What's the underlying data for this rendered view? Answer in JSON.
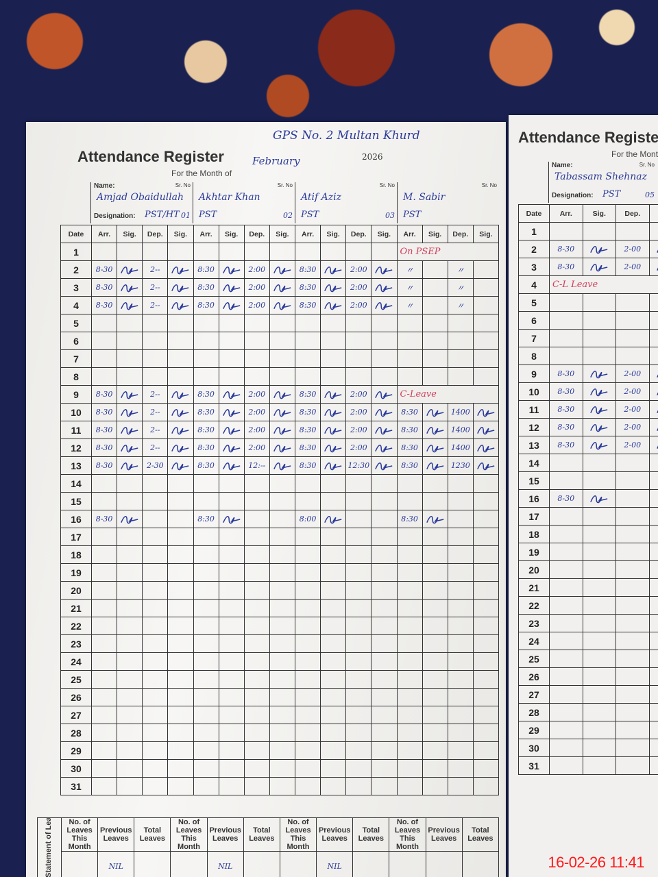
{
  "register": {
    "title": "Attendance Register",
    "month_label": "For the Month of",
    "school": "GPS No. 2 Multan Khurd",
    "month": "February",
    "year": "2026"
  },
  "labels": {
    "name": "Name:",
    "designation": "Designation:",
    "sr_no": "Sr. No",
    "date": "Date",
    "arr": "Arr.",
    "sig": "Sig.",
    "dep": "Dep.",
    "statement": "Statement of Leave Taken",
    "leaves_this_month": "No. of Leaves This Month",
    "previous_leaves": "Previous Leaves",
    "total_leaves": "Total Leaves"
  },
  "ink_colors": {
    "blue": "#2a3a9a",
    "red": "#d0405a"
  },
  "left_page": {
    "employees": [
      {
        "name": "Amjad Obaidullah",
        "designation": "PST/HT",
        "sr_no": "01",
        "previous_leaves": "NIL",
        "records": [
          {
            "date": 2,
            "arr": "8-30",
            "dep": "2--",
            "signed": true
          },
          {
            "date": 3,
            "arr": "8-30",
            "dep": "2--",
            "signed": true
          },
          {
            "date": 4,
            "arr": "8-30",
            "dep": "2--",
            "signed": true
          },
          {
            "date": 9,
            "arr": "8-30",
            "dep": "2--",
            "signed": true
          },
          {
            "date": 10,
            "arr": "8-30",
            "dep": "2--",
            "signed": true
          },
          {
            "date": 11,
            "arr": "8-30",
            "dep": "2--",
            "signed": true
          },
          {
            "date": 12,
            "arr": "8-30",
            "dep": "2--",
            "signed": true
          },
          {
            "date": 13,
            "arr": "8-30",
            "dep": "2-30",
            "signed": true
          },
          {
            "date": 16,
            "arr": "8-30",
            "dep": "",
            "signed": true
          }
        ],
        "notes": []
      },
      {
        "name": "Akhtar Khan",
        "designation": "PST",
        "sr_no": "02",
        "previous_leaves": "NIL",
        "records": [
          {
            "date": 2,
            "arr": "8:30",
            "dep": "2:00",
            "signed": true
          },
          {
            "date": 3,
            "arr": "8:30",
            "dep": "2:00",
            "signed": true
          },
          {
            "date": 4,
            "arr": "8:30",
            "dep": "2:00",
            "signed": true
          },
          {
            "date": 9,
            "arr": "8:30",
            "dep": "2:00",
            "signed": true
          },
          {
            "date": 10,
            "arr": "8:30",
            "dep": "2:00",
            "signed": true
          },
          {
            "date": 11,
            "arr": "8:30",
            "dep": "2:00",
            "signed": true
          },
          {
            "date": 12,
            "arr": "8:30",
            "dep": "2:00",
            "signed": true
          },
          {
            "date": 13,
            "arr": "8:30",
            "dep": "12:--",
            "signed": true
          },
          {
            "date": 16,
            "arr": "8:30",
            "dep": "",
            "signed": true
          }
        ],
        "notes": []
      },
      {
        "name": "Atif Aziz",
        "designation": "PST",
        "sr_no": "03",
        "previous_leaves": "NIL",
        "records": [
          {
            "date": 2,
            "arr": "8:30",
            "dep": "2:00",
            "signed": true
          },
          {
            "date": 3,
            "arr": "8:30",
            "dep": "2:00",
            "signed": true
          },
          {
            "date": 4,
            "arr": "8:30",
            "dep": "2:00",
            "signed": true
          },
          {
            "date": 9,
            "arr": "8:30",
            "dep": "2:00",
            "signed": true
          },
          {
            "date": 10,
            "arr": "8:30",
            "dep": "2:00",
            "signed": true
          },
          {
            "date": 11,
            "arr": "8:30",
            "dep": "2:00",
            "signed": true
          },
          {
            "date": 12,
            "arr": "8:30",
            "dep": "2:00",
            "signed": true
          },
          {
            "date": 13,
            "arr": "8:30",
            "dep": "12:30",
            "signed": true
          },
          {
            "date": 16,
            "arr": "8:00",
            "dep": "",
            "signed": true
          }
        ],
        "notes": []
      },
      {
        "name": "M. Sabir",
        "designation": "PST",
        "sr_no": "",
        "previous_leaves": "",
        "records": [
          {
            "date": 2,
            "arr": "〃",
            "dep": "〃",
            "signed": false
          },
          {
            "date": 3,
            "arr": "〃",
            "dep": "〃",
            "signed": false
          },
          {
            "date": 4,
            "arr": "〃",
            "dep": "〃",
            "signed": false
          },
          {
            "date": 10,
            "arr": "8:30",
            "dep": "1400",
            "signed": true
          },
          {
            "date": 11,
            "arr": "8:30",
            "dep": "1400",
            "signed": true
          },
          {
            "date": 12,
            "arr": "8:30",
            "dep": "1400",
            "signed": true
          },
          {
            "date": 13,
            "arr": "8:30",
            "dep": "1230",
            "signed": true
          },
          {
            "date": 16,
            "arr": "8:30",
            "dep": "",
            "signed": true
          }
        ],
        "notes": [
          {
            "date": 1,
            "text": "On PSEP"
          },
          {
            "date": 9,
            "text": "C-Leave"
          }
        ]
      }
    ]
  },
  "right_page": {
    "employees": [
      {
        "name": "Tabassam Shehnaz",
        "designation": "PST",
        "sr_no": "05",
        "records": [
          {
            "date": 2,
            "arr": "8-30",
            "dep": "2-00",
            "signed": true
          },
          {
            "date": 3,
            "arr": "8-30",
            "dep": "2-00",
            "signed": true
          },
          {
            "date": 9,
            "arr": "8-30",
            "dep": "2-00",
            "signed": true
          },
          {
            "date": 10,
            "arr": "8-30",
            "dep": "2-00",
            "signed": true
          },
          {
            "date": 11,
            "arr": "8-30",
            "dep": "2-00",
            "signed": true
          },
          {
            "date": 12,
            "arr": "8-30",
            "dep": "2-00",
            "signed": true
          },
          {
            "date": 13,
            "arr": "8-30",
            "dep": "2-00",
            "signed": true
          },
          {
            "date": 16,
            "arr": "8-30",
            "dep": "",
            "signed": true
          }
        ],
        "notes": [
          {
            "date": 4,
            "text": "C-L Leave"
          }
        ]
      }
    ]
  },
  "timestamp": "16-02-26 11:41"
}
